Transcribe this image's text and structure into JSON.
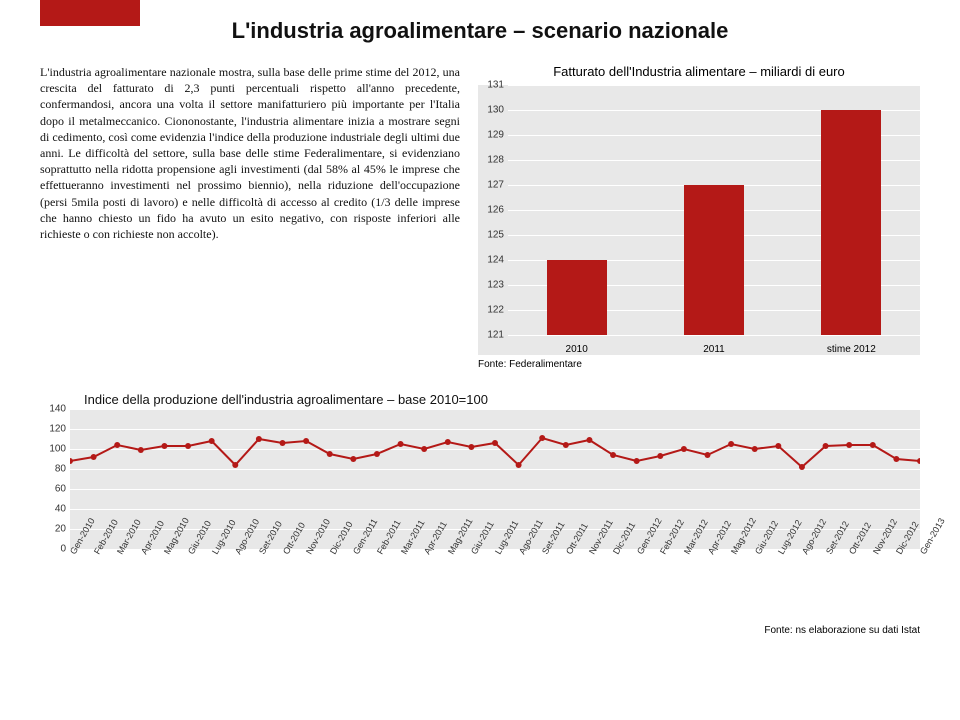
{
  "page": {
    "title": "L'industria agroalimentare – scenario nazionale",
    "body_text": "L'industria agroalimentare nazionale mostra, sulla base delle prime stime del 2012, una crescita del fatturato di 2,3 punti percentuali rispetto all'anno precedente, confermandosi, ancora una volta il settore manifatturiero più importante per l'Italia dopo il metalmeccanico. Ciononostante, l'industria alimentare inizia a mostrare segni di cedimento, così come evidenzia l'indice della produzione industriale degli ultimi due anni. Le difficoltà del settore, sulla base delle stime Federalimentare, si evidenziano soprattutto nella ridotta propensione agli investimenti (dal 58% al 45% le imprese che effettueranno investimenti nel prossimo biennio), nella riduzione dell'occupazione (persi 5mila posti di lavoro) e nelle difficoltà di accesso al credito (1/3 delle imprese che hanno chiesto un fido ha avuto un esito negativo, con risposte inferiori alle richieste o con richieste non accolte)."
  },
  "bar_chart": {
    "title": "Fatturato dell'Industria alimentare – miliardi di euro",
    "type": "bar",
    "categories": [
      "2010",
      "2011",
      "stime 2012"
    ],
    "values": [
      124,
      127,
      130
    ],
    "bar_color": "#b41917",
    "ylim": [
      121,
      131
    ],
    "ytick_step": 1,
    "background_color": "#e8e8e8",
    "grid_color": "#ffffff",
    "label_fontsize": 10,
    "source": "Fonte: Federalimentare"
  },
  "line_chart": {
    "title": "Indice della produzione dell'industria agroalimentare – base 2010=100",
    "type": "line",
    "labels": [
      "Gen-2010",
      "Feb-2010",
      "Mar-2010",
      "Apr-2010",
      "Mag-2010",
      "Giu-2010",
      "Lug-2010",
      "Ago-2010",
      "Set-2010",
      "Ott-2010",
      "Nov-2010",
      "Dic-2010",
      "Gen-2011",
      "Feb-2011",
      "Mar-2011",
      "Apr-2011",
      "Mag-2011",
      "Giu-2011",
      "Lug-2011",
      "Ago-2011",
      "Set-2011",
      "Ott-2011",
      "Nov-2011",
      "Dic-2011",
      "Gen-2012",
      "Feb-2012",
      "Mar-2012",
      "Apr-2012",
      "Mag-2012",
      "Giu-2012",
      "Lug-2012",
      "Ago-2012",
      "Set-2012",
      "Ott-2012",
      "Nov-2012",
      "Dic-2012",
      "Gen-2013"
    ],
    "values": [
      88,
      92,
      104,
      99,
      103,
      103,
      108,
      84,
      110,
      106,
      108,
      95,
      90,
      95,
      105,
      100,
      107,
      102,
      106,
      84,
      111,
      104,
      109,
      94,
      88,
      93,
      100,
      94,
      105,
      100,
      103,
      82,
      103,
      104,
      104,
      90,
      88
    ],
    "line_color": "#b41917",
    "marker_color": "#b41917",
    "line_width": 2,
    "marker_radius": 3,
    "ylim": [
      0,
      140
    ],
    "ytick_step": 20,
    "background_color": "#e8e8e8",
    "grid_color": "#ffffff",
    "label_fontsize": 10,
    "source": "Fonte: ns elaborazione su dati Istat"
  }
}
